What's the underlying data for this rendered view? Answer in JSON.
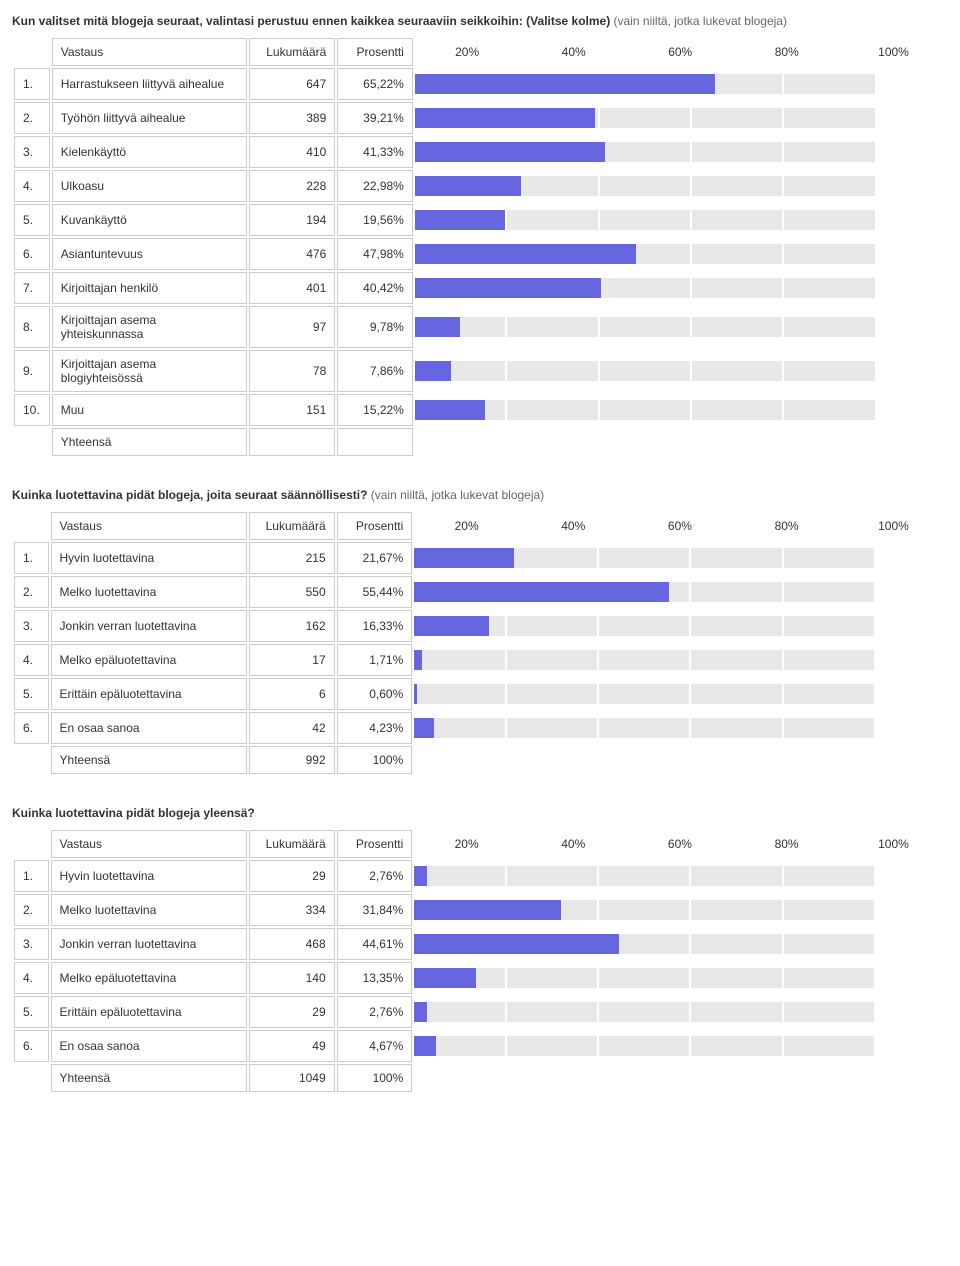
{
  "axis_labels": [
    "20%",
    "40%",
    "60%",
    "80%",
    "100%"
  ],
  "headers": {
    "answer": "Vastaus",
    "count": "Lukumäärä",
    "percent": "Prosentti",
    "total": "Yhteensä"
  },
  "bar_color": "#6666e0",
  "track_color": "#e8e8e8",
  "seg_gap": 2,
  "sections": [
    {
      "title_bold": "Kun valitset mitä blogeja seuraat, valintasi perustuu ennen kaikkea seuraaviin seikkoihin: (Valitse kolme)",
      "title_suffix": " (vain niiltä, jotka lukevat blogeja)",
      "rows": [
        {
          "n": "1.",
          "label": "Harrastukseen liittyvä aihealue",
          "count": 647,
          "pct": "65,22%",
          "val": 65.22
        },
        {
          "n": "2.",
          "label": "Työhön liittyvä aihealue",
          "count": 389,
          "pct": "39,21%",
          "val": 39.21
        },
        {
          "n": "3.",
          "label": "Kielenkäyttö",
          "count": 410,
          "pct": "41,33%",
          "val": 41.33
        },
        {
          "n": "4.",
          "label": "Ulkoasu",
          "count": 228,
          "pct": "22,98%",
          "val": 22.98
        },
        {
          "n": "5.",
          "label": "Kuvankäyttö",
          "count": 194,
          "pct": "19,56%",
          "val": 19.56
        },
        {
          "n": "6.",
          "label": "Asiantuntevuus",
          "count": 476,
          "pct": "47,98%",
          "val": 47.98
        },
        {
          "n": "7.",
          "label": "Kirjoittajan henkilö",
          "count": 401,
          "pct": "40,42%",
          "val": 40.42
        },
        {
          "n": "8.",
          "label": "Kirjoittajan asema yhteiskunnassa",
          "count": 97,
          "pct": "9,78%",
          "val": 9.78
        },
        {
          "n": "9.",
          "label": "Kirjoittajan asema blogiyhteisössä",
          "count": 78,
          "pct": "7,86%",
          "val": 7.86
        },
        {
          "n": "10.",
          "label": "Muu",
          "count": 151,
          "pct": "15,22%",
          "val": 15.22
        }
      ],
      "total_count": "",
      "total_pct": ""
    },
    {
      "title_bold": "Kuinka luotettavina pidät blogeja, joita seuraat säännöllisesti?",
      "title_suffix": " (vain niiltä, jotka lukevat blogeja)",
      "rows": [
        {
          "n": "1.",
          "label": "Hyvin luotettavina",
          "count": 215,
          "pct": "21,67%",
          "val": 21.67
        },
        {
          "n": "2.",
          "label": "Melko luotettavina",
          "count": 550,
          "pct": "55,44%",
          "val": 55.44
        },
        {
          "n": "3.",
          "label": "Jonkin verran luotettavina",
          "count": 162,
          "pct": "16,33%",
          "val": 16.33
        },
        {
          "n": "4.",
          "label": "Melko epäluotettavina",
          "count": 17,
          "pct": "1,71%",
          "val": 1.71
        },
        {
          "n": "5.",
          "label": "Erittäin epäluotettavina",
          "count": 6,
          "pct": "0,60%",
          "val": 0.6
        },
        {
          "n": "6.",
          "label": "En osaa sanoa",
          "count": 42,
          "pct": "4,23%",
          "val": 4.23
        }
      ],
      "total_count": "992",
      "total_pct": "100%"
    },
    {
      "title_bold": "Kuinka luotettavina pidät blogeja yleensä?",
      "title_suffix": "",
      "rows": [
        {
          "n": "1.",
          "label": "Hyvin luotettavina",
          "count": 29,
          "pct": "2,76%",
          "val": 2.76
        },
        {
          "n": "2.",
          "label": "Melko luotettavina",
          "count": 334,
          "pct": "31,84%",
          "val": 31.84
        },
        {
          "n": "3.",
          "label": "Jonkin verran luotettavina",
          "count": 468,
          "pct": "44,61%",
          "val": 44.61
        },
        {
          "n": "4.",
          "label": "Melko epäluotettavina",
          "count": 140,
          "pct": "13,35%",
          "val": 13.35
        },
        {
          "n": "5.",
          "label": "Erittäin epäluotettavina",
          "count": 29,
          "pct": "2,76%",
          "val": 2.76
        },
        {
          "n": "6.",
          "label": "En osaa sanoa",
          "count": 49,
          "pct": "4,67%",
          "val": 4.67
        }
      ],
      "total_count": "1049",
      "total_pct": "100%"
    }
  ]
}
